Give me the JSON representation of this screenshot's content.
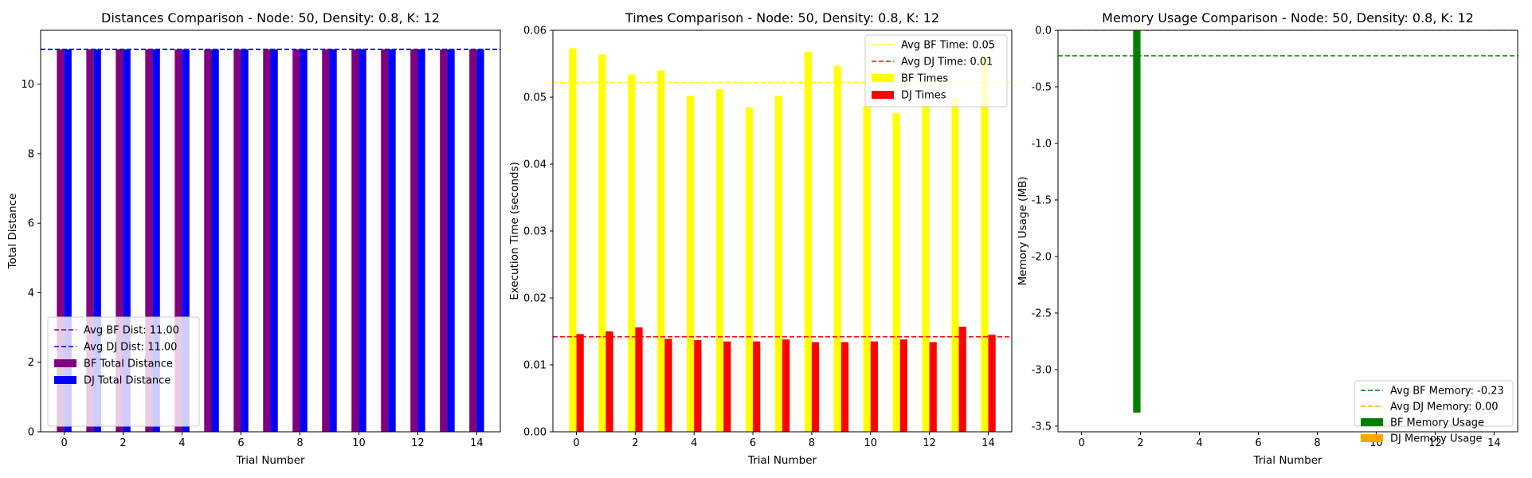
{
  "chart_data": [
    {
      "type": "bar",
      "title": "Distances Comparison - Node: 50, Density: 0.8, K: 12",
      "xlabel": "Trial Number",
      "ylabel": "Total Distance",
      "x": [
        0,
        1,
        2,
        3,
        4,
        5,
        6,
        7,
        8,
        9,
        10,
        11,
        12,
        13,
        14
      ],
      "xlim": [
        -0.8,
        14.8
      ],
      "ylim": [
        0,
        11.55
      ],
      "xticks": [
        0,
        2,
        4,
        6,
        8,
        10,
        12,
        14
      ],
      "yticks": [
        0,
        2,
        4,
        6,
        8,
        10
      ],
      "series": [
        {
          "name": "BF Total Distance",
          "color": "#800080",
          "values": [
            11,
            11,
            11,
            11,
            11,
            11,
            11,
            11,
            11,
            11,
            11,
            11,
            11,
            11,
            11
          ]
        },
        {
          "name": "DJ Total Distance",
          "color": "#0000ff",
          "values": [
            11,
            11,
            11,
            11,
            11,
            11,
            11,
            11,
            11,
            11,
            11,
            11,
            11,
            11,
            11
          ]
        }
      ],
      "hlines": [
        {
          "label": "Avg BF Dist: 11.00",
          "value": 11.0,
          "color": "#800080"
        },
        {
          "label": "Avg DJ Dist: 11.00",
          "value": 11.0,
          "color": "#0000ff"
        }
      ],
      "legend_position": "lower-left",
      "grid": false
    },
    {
      "type": "bar",
      "title": "Times Comparison - Node: 50, Density: 0.8, K: 12",
      "xlabel": "Trial Number",
      "ylabel": "Execution Time (seconds)",
      "x": [
        0,
        1,
        2,
        3,
        4,
        5,
        6,
        7,
        8,
        9,
        10,
        11,
        12,
        13,
        14
      ],
      "xlim": [
        -0.8,
        14.8
      ],
      "ylim": [
        0,
        0.06
      ],
      "xticks": [
        0,
        2,
        4,
        6,
        8,
        10,
        12,
        14
      ],
      "yticks": [
        0.0,
        0.01,
        0.02,
        0.03,
        0.04,
        0.05,
        0.06
      ],
      "ytick_decimals": 2,
      "series": [
        {
          "name": "BF Times",
          "color": "#ffff00",
          "values": [
            0.0573,
            0.0564,
            0.0534,
            0.054,
            0.0502,
            0.0512,
            0.0485,
            0.0502,
            0.0568,
            0.0547,
            0.0487,
            0.0476,
            0.049,
            0.05,
            0.056
          ]
        },
        {
          "name": "DJ Times",
          "color": "#ff0000",
          "values": [
            0.0146,
            0.015,
            0.0156,
            0.0139,
            0.0137,
            0.0135,
            0.0135,
            0.0138,
            0.0134,
            0.0134,
            0.0135,
            0.0138,
            0.0134,
            0.0157,
            0.0145
          ]
        }
      ],
      "hlines": [
        {
          "label": "Avg BF Time: 0.05",
          "value": 0.0522,
          "color": "#ffff00"
        },
        {
          "label": "Avg DJ Time: 0.01",
          "value": 0.0142,
          "color": "#ff0000"
        }
      ],
      "legend_position": "upper-right",
      "grid": false
    },
    {
      "type": "bar",
      "title": "Memory Usage Comparison - Node: 50, Density: 0.8, K: 12",
      "xlabel": "Trial Number",
      "ylabel": "Memory Usage (MB)",
      "x": [
        0,
        1,
        2,
        3,
        4,
        5,
        6,
        7,
        8,
        9,
        10,
        11,
        12,
        13,
        14
      ],
      "xlim": [
        -0.8,
        14.8
      ],
      "ylim": [
        -3.55,
        0
      ],
      "xticks": [
        0,
        2,
        4,
        6,
        8,
        10,
        12,
        14
      ],
      "yticks": [
        0.0,
        -0.5,
        -1.0,
        -1.5,
        -2.0,
        -2.5,
        -3.0,
        -3.5
      ],
      "ytick_decimals": 1,
      "series": [
        {
          "name": "BF Memory Usage",
          "color": "#008000",
          "values": [
            0,
            0,
            -3.38,
            0,
            0,
            0,
            0,
            0,
            0,
            0,
            0,
            0,
            0,
            0,
            0
          ]
        },
        {
          "name": "DJ Memory Usage",
          "color": "#ffa500",
          "values": [
            0,
            0,
            0,
            0,
            0,
            0,
            0,
            0,
            0,
            0,
            0,
            0,
            0,
            0,
            0
          ]
        }
      ],
      "hlines": [
        {
          "label": "Avg BF Memory: -0.23",
          "value": -0.225,
          "color": "#008000"
        },
        {
          "label": "Avg DJ Memory: 0.00",
          "value": 0.0,
          "color": "#ffa500"
        }
      ],
      "legend_position": "lower-right",
      "grid": false
    }
  ]
}
